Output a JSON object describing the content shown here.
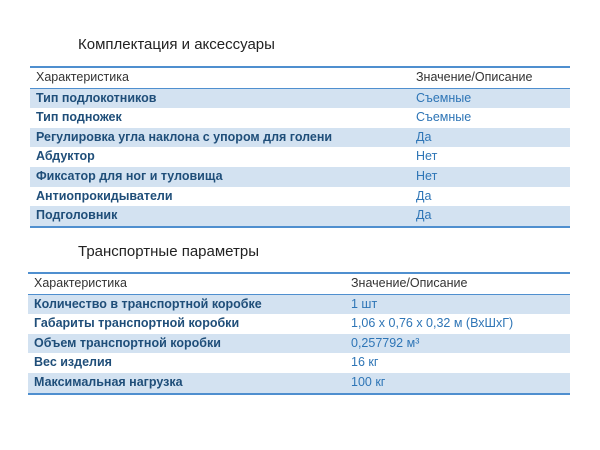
{
  "section1": {
    "title": "Комплектация и аксессуары",
    "header": {
      "key": "Характеристика",
      "value": "Значение/Описание"
    },
    "rows": [
      {
        "key": "Тип подлокотников",
        "value": "Съемные"
      },
      {
        "key": "Тип подножек",
        "value": "Съемные"
      },
      {
        "key": "Регулировка угла наклона с упором для голени",
        "value": "Да"
      },
      {
        "key": "Абдуктор",
        "value": "Нет"
      },
      {
        "key": "Фиксатор для ног и туловища",
        "value": "Нет"
      },
      {
        "key": "Антиопрокидыватели",
        "value": "Да"
      },
      {
        "key": "Подголовник",
        "value": "Да"
      }
    ]
  },
  "section2": {
    "title": "Транспортные параметры",
    "header": {
      "key": "Характеристика",
      "value": "Значение/Описание"
    },
    "rows": [
      {
        "key": "Количество в транспортной коробке",
        "value": "1 шт"
      },
      {
        "key": "Габариты транспортной коробки",
        "value": "1,06 х 0,76 х 0,32 м (ВхШхГ)"
      },
      {
        "key": "Объем транспортной коробки",
        "value": "0,257792 м³"
      },
      {
        "key": "Вес изделия",
        "value": "16 кг"
      },
      {
        "key": "Максимальная нагрузка",
        "value": "100 кг"
      }
    ]
  },
  "colors": {
    "accent": "#4f8fcf",
    "band": "#d3e2f1",
    "key_text": "#1f4e79",
    "value_text": "#2e75b6"
  }
}
